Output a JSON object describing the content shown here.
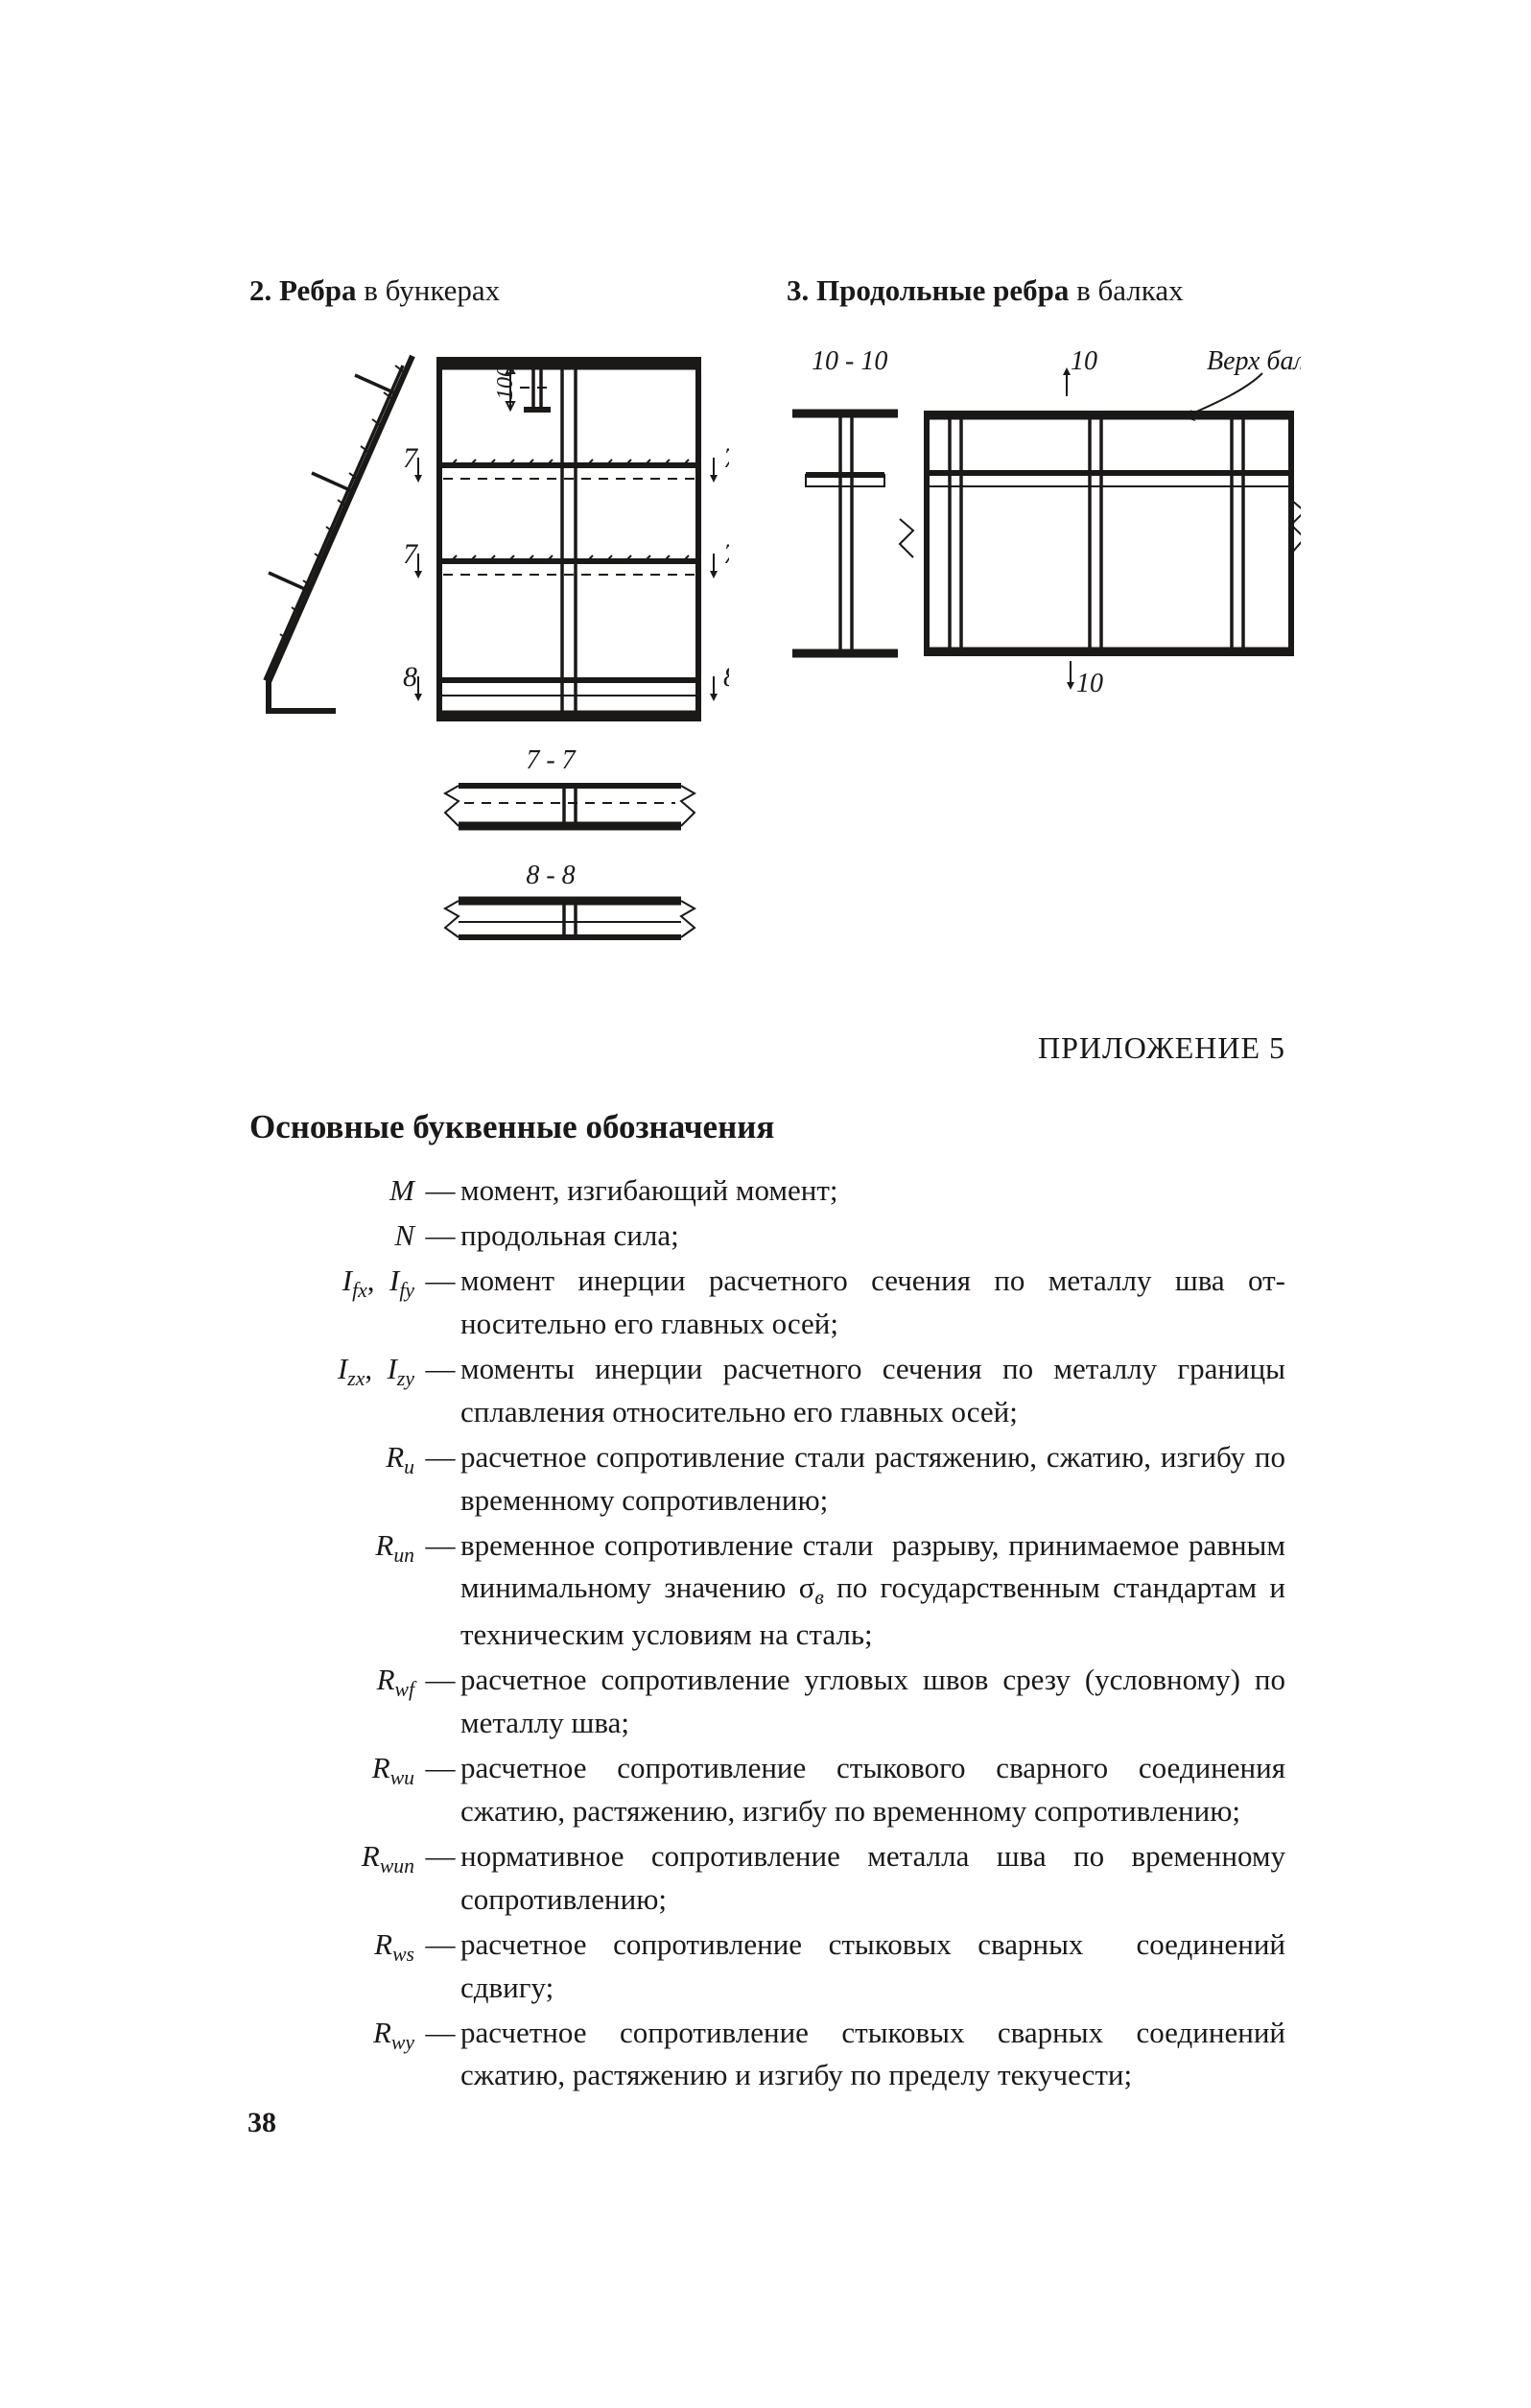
{
  "colors": {
    "ink": "#1b1818",
    "bg": "#ffffff"
  },
  "font_family": "Times New Roman",
  "body_fontsize_pt": 23,
  "figs": {
    "h2": {
      "bold": "2. Ребра",
      "rest": " в бункерах"
    },
    "h3": {
      "bold": "3. Продольные ребра",
      "rest": " в балках"
    },
    "labels": {
      "n7": "7",
      "n8": "8",
      "n10": "10",
      "sec77": "7 - 7",
      "sec88": "8 - 8",
      "sec1010": "10 - 10",
      "n100": "100",
      "beam_top": "Верх балка"
    }
  },
  "appendix": "ПРИЛОЖЕНИЕ 5",
  "section_title": "Основные буквенные обозначения",
  "dash": "—",
  "defs": [
    {
      "sym": "<span class='i'>M</span>",
      "txt": "момент, изгибающий момент;"
    },
    {
      "sym": "<span class='i'>N</span>",
      "txt": "продольная сила;"
    },
    {
      "sym": "<span class='i'>I</span><span class='sub'>fx</span>, &nbsp;<span class='i'>I</span><span class='sub'>fy</span>",
      "txt": "момент инерции расчетного сечения по металлу шва от­носительно его главных осей;"
    },
    {
      "sym": "<span class='i'>I</span><span class='sub'>zx</span>, &nbsp;<span class='i'>I</span><span class='sub'>zy</span>",
      "txt": "моменты инерции расчетного сечения по металлу грани­цы сплавления относительно его главных осей;"
    },
    {
      "sym": "<span class='i'>R</span><span class='sub'>u</span>",
      "txt": "расчетное сопротивление стали растяжению, сжатию, из­гибу по временному сопротивлению;"
    },
    {
      "sym": "<span class='i'>R</span><span class='sub'>un</span>",
      "txt": "временное сопротивление стали &nbsp;разрыву, принимаемое равным минимальному значению σ<span class='sub'>в</span> по государственным стандартам и техническим условиям на сталь;"
    },
    {
      "sym": "<span class='i'>R</span><span class='sub'>wf</span>",
      "txt": "расчетное сопротивление угловых швов срезу (условно­му) по металлу шва;"
    },
    {
      "sym": "<span class='i'>R</span><span class='sub'>wu</span>",
      "txt": "расчетное сопротивление стыкового сварного соединения сжатию, растяжению, изгибу по временному сопротив­лению;"
    },
    {
      "sym": "<span class='i'>R</span><span class='sub'>wun</span>",
      "txt": "нормативное сопротивление металла шва по временному сопротивлению;"
    },
    {
      "sym": "<span class='i'>R</span><span class='sub'>ws</span>",
      "txt": "расчетное сопротивление стыковых сварных &nbsp;соединений сдвигу;"
    },
    {
      "sym": "<span class='i'>R</span><span class='sub'>wy</span>",
      "txt": "расчетное сопротивление стыковых сварных соединений сжатию, растяжению и изгибу по пределу текучести;"
    }
  ],
  "page_number": "38"
}
